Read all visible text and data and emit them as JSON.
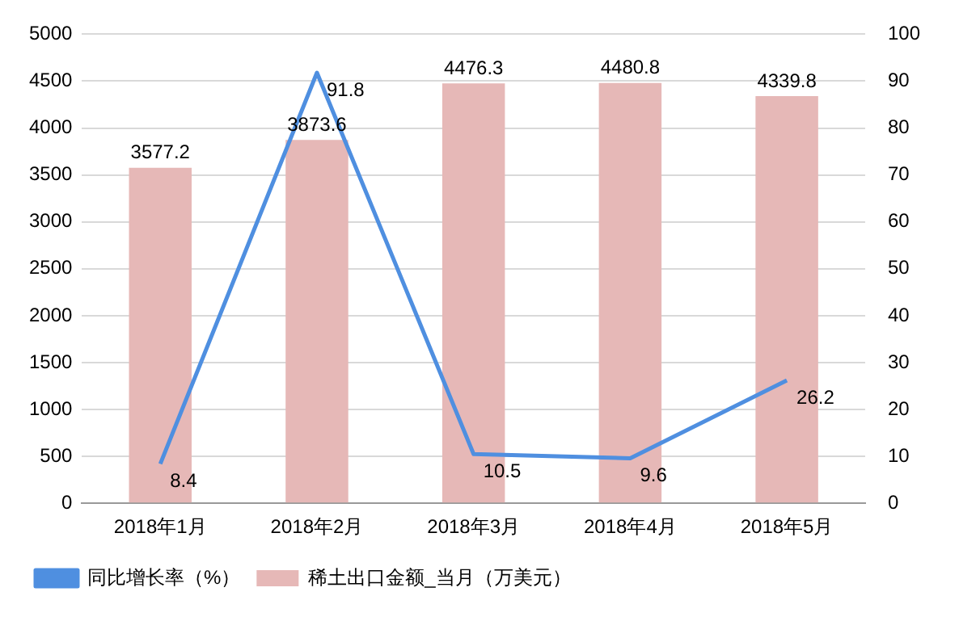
{
  "chart_data": {
    "type": "bar",
    "categories": [
      "2018年1月",
      "2018年2月",
      "2018年3月",
      "2018年4月",
      "2018年5月"
    ],
    "series": [
      {
        "name": "稀土出口金额_当月（万美元）",
        "color": "#e6b8b7",
        "values": [
          3577.2,
          3873.6,
          4476.3,
          4480.8,
          4339.8
        ]
      },
      {
        "name": "同比增长率（%）",
        "type": "line",
        "axis": "y2",
        "color": "#4f8fe0",
        "values": [
          8.4,
          91.8,
          10.5,
          9.6,
          26.2
        ]
      }
    ],
    "ylim": [
      0,
      5000
    ],
    "yticks": [
      0,
      500,
      1000,
      1500,
      2000,
      2500,
      3000,
      3500,
      4000,
      4500,
      5000
    ],
    "y2lim": [
      0,
      100
    ],
    "y2ticks": [
      0,
      10,
      20,
      30,
      40,
      50,
      60,
      70,
      80,
      90,
      100
    ],
    "grid": "y",
    "legend": "bottom",
    "data_labels": true,
    "marker": "none",
    "line_style": "solid"
  }
}
